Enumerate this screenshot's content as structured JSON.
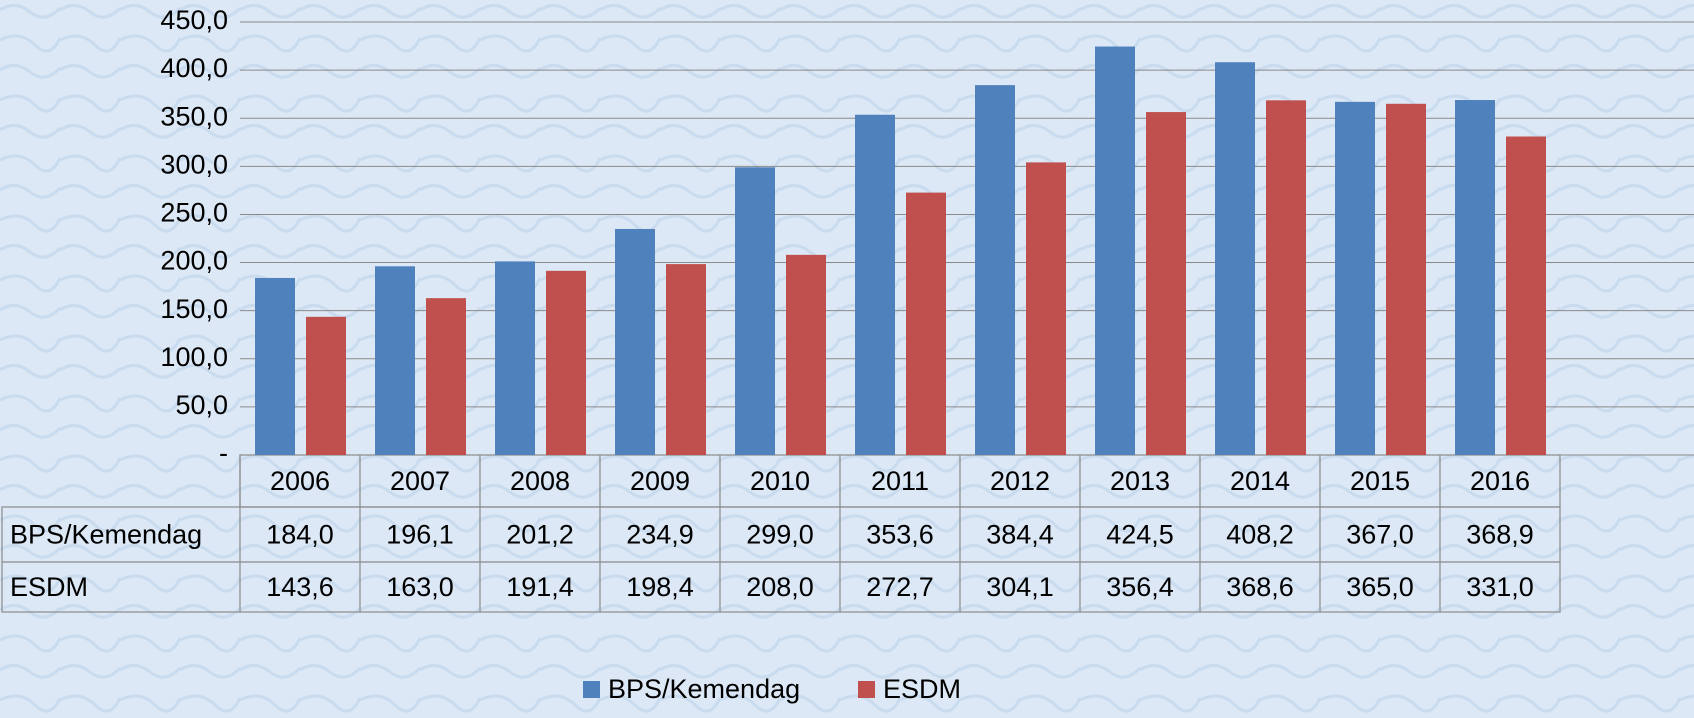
{
  "chart_data": {
    "type": "bar",
    "categories": [
      "2006",
      "2007",
      "2008",
      "2009",
      "2010",
      "2011",
      "2012",
      "2013",
      "2014",
      "2015",
      "2016"
    ],
    "series": [
      {
        "name": "BPS/Kemendag",
        "color": "#4f81bd",
        "values": [
          184.0,
          196.1,
          201.2,
          234.9,
          299.0,
          353.6,
          384.4,
          424.5,
          408.2,
          367.0,
          368.9
        ],
        "value_labels": [
          "184,0",
          "196,1",
          "201,2",
          "234,9",
          "299,0",
          "353,6",
          "384,4",
          "424,5",
          "408,2",
          "367,0",
          "368,9"
        ]
      },
      {
        "name": "ESDM",
        "color": "#c0504d",
        "values": [
          143.6,
          163.0,
          191.4,
          198.4,
          208.0,
          272.7,
          304.1,
          356.4,
          368.6,
          365.0,
          331.0
        ],
        "value_labels": [
          "143,6",
          "163,0",
          "191,4",
          "198,4",
          "208,0",
          "272,7",
          "304,1",
          "356,4",
          "368,6",
          "365,0",
          "331,0"
        ]
      }
    ],
    "ylim": [
      0,
      450
    ],
    "yticks": [
      {
        "value": 0,
        "label": "-"
      },
      {
        "value": 50,
        "label": "50,0"
      },
      {
        "value": 100,
        "label": "100,0"
      },
      {
        "value": 150,
        "label": "150,0"
      },
      {
        "value": 200,
        "label": "200,0"
      },
      {
        "value": 250,
        "label": "250,0"
      },
      {
        "value": 300,
        "label": "300,0"
      },
      {
        "value": 350,
        "label": "350,0"
      },
      {
        "value": 400,
        "label": "400,0"
      },
      {
        "value": 450,
        "label": "450,0"
      }
    ],
    "grid": true,
    "legend": "bottom"
  }
}
